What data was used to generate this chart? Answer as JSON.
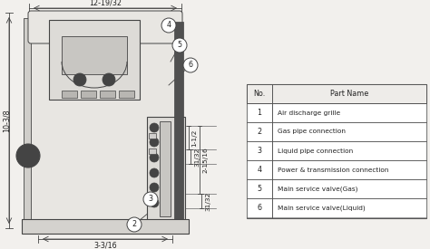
{
  "bg_color": "#f2f0ed",
  "table_rows": [
    [
      "1",
      "Air discharge grille"
    ],
    [
      "2",
      "Gas pipe connection"
    ],
    [
      "3",
      "Liquid pipe connection"
    ],
    [
      "4",
      "Power & transmission connection"
    ],
    [
      "5",
      "Main service valve(Gas)"
    ],
    [
      "6",
      "Main service valve(Liquid)"
    ]
  ],
  "dim_top": "12-19/32",
  "dim_left": "10-3/8",
  "dim_bottom": "3-3/16",
  "dim_r1": "1-1/2",
  "dim_r2": "31/32",
  "dim_r3": "2-15/16",
  "dim_r4": "31/32",
  "lc": "#444444",
  "tc": "#222222",
  "bg_unit": "#e8e6e2",
  "bg_panel": "#d4d2ce",
  "bg_table": "#ffffff"
}
